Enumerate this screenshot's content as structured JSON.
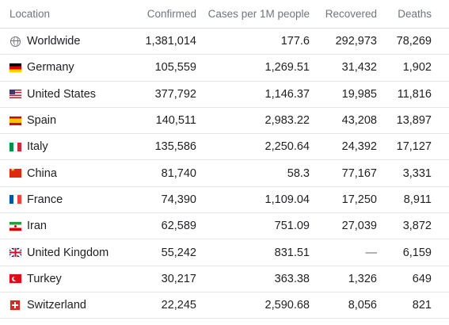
{
  "headers": {
    "location": "Location",
    "confirmed": "Confirmed",
    "cases_per_1m": "Cases per 1M people",
    "recovered": "Recovered",
    "deaths": "Deaths"
  },
  "rows": [
    {
      "icon": "globe-icon",
      "location": "Worldwide",
      "confirmed": "1,381,014",
      "cases_per_1m": "177.6",
      "recovered": "292,973",
      "deaths": "78,269"
    },
    {
      "icon": "germany-flag-icon",
      "location": "Germany",
      "confirmed": "105,559",
      "cases_per_1m": "1,269.51",
      "recovered": "31,432",
      "deaths": "1,902"
    },
    {
      "icon": "united-states-flag-icon",
      "location": "United States",
      "confirmed": "377,792",
      "cases_per_1m": "1,146.37",
      "recovered": "19,985",
      "deaths": "11,816"
    },
    {
      "icon": "spain-flag-icon",
      "location": "Spain",
      "confirmed": "140,511",
      "cases_per_1m": "2,983.22",
      "recovered": "43,208",
      "deaths": "13,897"
    },
    {
      "icon": "italy-flag-icon",
      "location": "Italy",
      "confirmed": "135,586",
      "cases_per_1m": "2,250.64",
      "recovered": "24,392",
      "deaths": "17,127"
    },
    {
      "icon": "china-flag-icon",
      "location": "China",
      "confirmed": "81,740",
      "cases_per_1m": "58.3",
      "recovered": "77,167",
      "deaths": "3,331"
    },
    {
      "icon": "france-flag-icon",
      "location": "France",
      "confirmed": "74,390",
      "cases_per_1m": "1,109.04",
      "recovered": "17,250",
      "deaths": "8,911"
    },
    {
      "icon": "iran-flag-icon",
      "location": "Iran",
      "confirmed": "62,589",
      "cases_per_1m": "751.09",
      "recovered": "27,039",
      "deaths": "3,872"
    },
    {
      "icon": "united-kingdom-flag-icon",
      "location": "United Kingdom",
      "confirmed": "55,242",
      "cases_per_1m": "831.51",
      "recovered": "—",
      "deaths": "6,159"
    },
    {
      "icon": "turkey-flag-icon",
      "location": "Turkey",
      "confirmed": "30,217",
      "cases_per_1m": "363.38",
      "recovered": "1,326",
      "deaths": "649"
    },
    {
      "icon": "switzerland-flag-icon",
      "location": "Switzerland",
      "confirmed": "22,245",
      "cases_per_1m": "2,590.68",
      "recovered": "8,056",
      "deaths": "821"
    }
  ]
}
